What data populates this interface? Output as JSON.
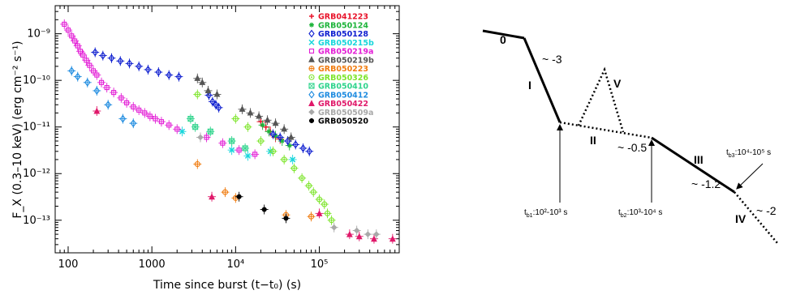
{
  "chart_data": [
    {
      "type": "scatter",
      "title": "",
      "xlabel": "Time since burst (t−t₀) (s)",
      "ylabel": "F_X (0.3–10 keV) (erg cm⁻² s⁻¹)",
      "xscale": "log",
      "yscale": "log",
      "xlim": [
        70,
        900000
      ],
      "ylim": [
        2e-14,
        4e-09
      ],
      "x_ticks": [
        "100",
        "1000",
        "10⁴",
        "10⁵"
      ],
      "y_ticks": [
        "10⁻¹³",
        "10⁻¹²",
        "10⁻¹¹",
        "10⁻¹⁰",
        "10⁻⁹"
      ],
      "grid": false,
      "legend_position": "top-right",
      "series": [
        {
          "name": "GRB041223",
          "color": "#e8132a",
          "symbol": "+",
          "points": [
            [
              20000,
              1.3e-11
            ],
            [
              23000,
              1e-11
            ],
            [
              26000,
              8e-12
            ],
            [
              30000,
              6e-12
            ],
            [
              34000,
              5.5e-12
            ]
          ]
        },
        {
          "name": "GRB050124",
          "color": "#1db43a",
          "symbol": "*",
          "points": [
            [
              21000,
              1.1e-11
            ],
            [
              25000,
              8e-12
            ],
            [
              30000,
              6.5e-12
            ],
            [
              36000,
              5e-12
            ],
            [
              44000,
              4e-12
            ]
          ]
        },
        {
          "name": "GRB050128",
          "color": "#1020d0",
          "symbol": "diamond",
          "points": [
            [
              210,
              4e-10
            ],
            [
              260,
              3.4e-10
            ],
            [
              330,
              3e-10
            ],
            [
              420,
              2.6e-10
            ],
            [
              540,
              2.3e-10
            ],
            [
              700,
              2e-10
            ],
            [
              900,
              1.7e-10
            ],
            [
              1200,
              1.5e-10
            ],
            [
              1600,
              1.3e-10
            ],
            [
              2100,
              1.2e-10
            ],
            [
              4800,
              4.8e-11
            ],
            [
              5300,
              3.5e-11
            ],
            [
              5800,
              3e-11
            ],
            [
              6300,
              2.6e-11
            ],
            [
              28000,
              7e-12
            ],
            [
              34000,
              6e-12
            ],
            [
              42000,
              5e-12
            ],
            [
              52000,
              4.2e-12
            ],
            [
              64000,
              3.5e-12
            ],
            [
              76000,
              3e-12
            ]
          ]
        },
        {
          "name": "GRB050215b",
          "color": "#19d6dc",
          "symbol": "x",
          "points": [
            [
              2300,
              8e-12
            ],
            [
              9000,
              3.2e-12
            ],
            [
              14000,
              2.4e-12
            ],
            [
              26000,
              3e-12
            ],
            [
              48000,
              2e-12
            ]
          ]
        },
        {
          "name": "GRB050219a",
          "color": "#e31fd6",
          "symbol": "square",
          "points": [
            [
              90,
              1.6e-09
            ],
            [
              100,
              1.2e-09
            ],
            [
              110,
              9e-10
            ],
            [
              120,
              7e-10
            ],
            [
              130,
              5.5e-10
            ],
            [
              140,
              4.2e-10
            ],
            [
              150,
              3.5e-10
            ],
            [
              165,
              2.7e-10
            ],
            [
              180,
              2.1e-10
            ],
            [
              200,
              1.6e-10
            ],
            [
              220,
              1.3e-10
            ],
            [
              250,
              9e-11
            ],
            [
              290,
              7e-11
            ],
            [
              350,
              5.5e-11
            ],
            [
              430,
              4.2e-11
            ],
            [
              500,
              3.3e-11
            ],
            [
              600,
              2.7e-11
            ],
            [
              700,
              2.3e-11
            ],
            [
              820,
              2e-11
            ],
            [
              950,
              1.7e-11
            ],
            [
              1100,
              1.5e-11
            ],
            [
              1300,
              1.3e-11
            ],
            [
              1600,
              1.1e-11
            ],
            [
              2000,
              9e-12
            ],
            [
              4500,
              6e-12
            ],
            [
              7000,
              4.5e-12
            ],
            [
              11000,
              3.2e-12
            ],
            [
              17000,
              2.6e-12
            ]
          ]
        },
        {
          "name": "GRB050219b",
          "color": "#555555",
          "symbol": "triangle",
          "points": [
            [
              3500,
              1.1e-10
            ],
            [
              4000,
              9e-11
            ],
            [
              4700,
              6e-11
            ],
            [
              6000,
              5e-11
            ],
            [
              12000,
              2.4e-11
            ],
            [
              15000,
              2e-11
            ],
            [
              19000,
              1.7e-11
            ],
            [
              24000,
              1.4e-11
            ],
            [
              30000,
              1.2e-11
            ],
            [
              38000,
              9e-12
            ],
            [
              46000,
              6e-12
            ]
          ]
        },
        {
          "name": "GRB050223",
          "color": "#f07c10",
          "symbol": "circle-plus",
          "points": [
            [
              3500,
              1.6e-12
            ],
            [
              7500,
              4e-13
            ],
            [
              10000,
              3e-13
            ],
            [
              40000,
              1.3e-13
            ],
            [
              80000,
              1.2e-13
            ]
          ]
        },
        {
          "name": "GRB050326",
          "color": "#7ee52c",
          "symbol": "circle-dot",
          "points": [
            [
              3500,
              5e-11
            ],
            [
              10000,
              1.5e-11
            ],
            [
              14000,
              1e-11
            ],
            [
              20000,
              5e-12
            ],
            [
              28000,
              3e-12
            ],
            [
              38000,
              2e-12
            ],
            [
              50000,
              1.3e-12
            ],
            [
              62000,
              8e-13
            ],
            [
              75000,
              5.5e-13
            ],
            [
              85000,
              4e-13
            ],
            [
              100000,
              2.8e-13
            ],
            [
              115000,
              2.2e-13
            ],
            [
              125000,
              1.4e-13
            ],
            [
              140000,
              1e-13
            ]
          ]
        },
        {
          "name": "GRB050410",
          "color": "#2fd48c",
          "symbol": "square-x",
          "points": [
            [
              2900,
              1.5e-11
            ],
            [
              3300,
              1e-11
            ],
            [
              5000,
              8e-12
            ],
            [
              9000,
              5e-12
            ],
            [
              13000,
              3.5e-12
            ]
          ]
        },
        {
          "name": "GRB050412",
          "color": "#1f8ce0",
          "symbol": "diamond",
          "points": [
            [
              110,
              1.6e-10
            ],
            [
              130,
              1.2e-10
            ],
            [
              170,
              9e-11
            ],
            [
              220,
              6e-11
            ],
            [
              300,
              3e-11
            ],
            [
              450,
              1.5e-11
            ],
            [
              600,
              1.2e-11
            ]
          ]
        },
        {
          "name": "GRB050422",
          "color": "#e0196a",
          "symbol": "filled-triangle",
          "points": [
            [
              220,
              2.2e-11
            ],
            [
              5200,
              3.2e-13
            ],
            [
              100000,
              1.4e-13
            ],
            [
              230000,
              5e-14
            ],
            [
              300000,
              4.5e-14
            ],
            [
              450000,
              4e-14
            ],
            [
              750000,
              4e-14
            ]
          ]
        },
        {
          "name": "GRB050509a",
          "color": "#a9a9a9",
          "symbol": "filled-diamond",
          "points": [
            [
              3800,
              6e-12
            ],
            [
              150000,
              7e-14
            ],
            [
              280000,
              6e-14
            ],
            [
              380000,
              5e-14
            ],
            [
              480000,
              5e-14
            ]
          ]
        },
        {
          "name": "GRB050520",
          "color": "#000000",
          "symbol": "star",
          "points": [
            [
              11000,
              3.2e-13
            ],
            [
              22000,
              1.7e-13
            ],
            [
              40000,
              1.1e-13
            ]
          ]
        }
      ]
    },
    {
      "type": "diagram",
      "segments": [
        {
          "label": "0",
          "slope": ""
        },
        {
          "label": "I",
          "slope": "~ -3"
        },
        {
          "label": "II",
          "slope": "~ -0.5"
        },
        {
          "label": "III",
          "slope": "~ -1.2"
        },
        {
          "label": "IV",
          "slope": "~ -2"
        },
        {
          "label": "V",
          "slope": ""
        }
      ],
      "break_times": [
        {
          "name": "t_b1",
          "sub": "b1",
          "text": ":10²-10³ s"
        },
        {
          "name": "t_b2",
          "sub": "b2",
          "text": ":10³-10⁴ s"
        },
        {
          "name": "t_b3",
          "sub": "b3",
          "text": ":10⁴-10⁵ s"
        }
      ]
    }
  ]
}
